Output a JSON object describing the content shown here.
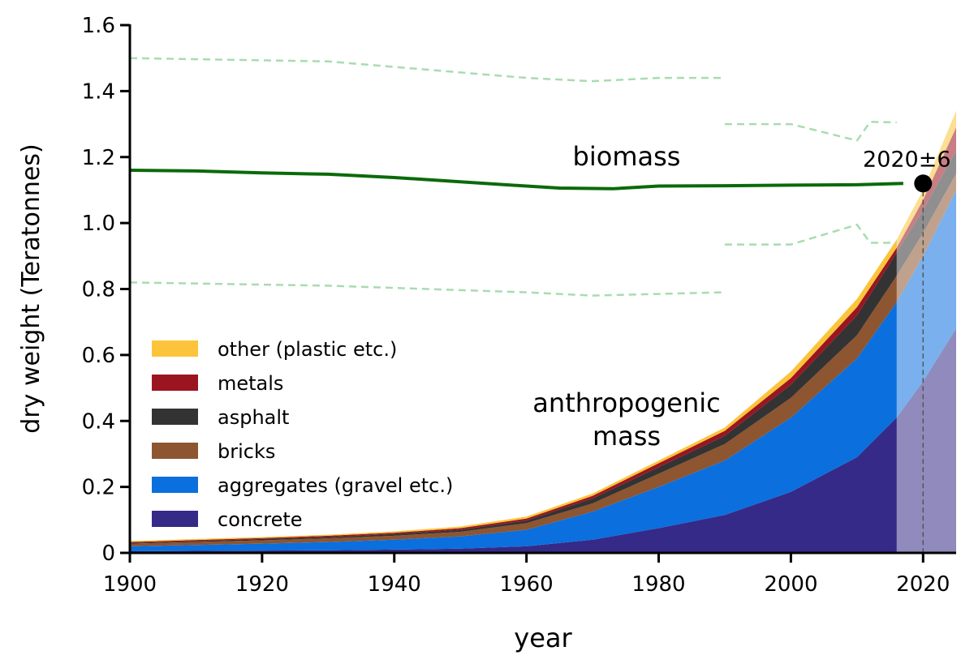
{
  "chart_data": {
    "type": "area",
    "xlabel": "year",
    "ylabel": "dry weight (Teratonnes)",
    "xlim": [
      1900,
      2025
    ],
    "ylim": [
      0,
      1.6
    ],
    "xticks": [
      1900,
      1920,
      1940,
      1960,
      1980,
      2000,
      2020
    ],
    "yticks": [
      0,
      0.2,
      0.4,
      0.6,
      0.8,
      1.0,
      1.2,
      1.4,
      1.6
    ],
    "ytick_labels": [
      "0",
      "0.2",
      "0.4",
      "0.6",
      "0.8",
      "1.0",
      "1.2",
      "1.4",
      "1.6"
    ],
    "grid": false,
    "legend_placement": "lower-left",
    "stacked": true,
    "projection_start": 2016,
    "x": [
      1900,
      1910,
      1920,
      1930,
      1940,
      1950,
      1960,
      1970,
      1980,
      1990,
      2000,
      2010,
      2016,
      2020,
      2025
    ],
    "series": [
      {
        "name": "concrete",
        "color": "#352a87",
        "values": [
          0.005,
          0.006,
          0.007,
          0.008,
          0.01,
          0.013,
          0.02,
          0.04,
          0.075,
          0.115,
          0.185,
          0.29,
          0.41,
          0.52,
          0.68
        ]
      },
      {
        "name": "aggregates (gravel etc.)",
        "color": "#0b6fde",
        "values": [
          0.015,
          0.018,
          0.021,
          0.025,
          0.03,
          0.037,
          0.05,
          0.085,
          0.125,
          0.165,
          0.225,
          0.3,
          0.35,
          0.38,
          0.42
        ]
      },
      {
        "name": "bricks",
        "color": "#8d5530",
        "values": [
          0.008,
          0.009,
          0.01,
          0.011,
          0.012,
          0.014,
          0.02,
          0.025,
          0.04,
          0.05,
          0.06,
          0.07,
          0.08,
          0.07,
          0.05
        ]
      },
      {
        "name": "asphalt",
        "color": "#333333",
        "values": [
          0.002,
          0.003,
          0.004,
          0.004,
          0.005,
          0.006,
          0.008,
          0.015,
          0.02,
          0.025,
          0.04,
          0.06,
          0.07,
          0.07,
          0.07
        ]
      },
      {
        "name": "metals",
        "color": "#9b1520",
        "values": [
          0.003,
          0.003,
          0.003,
          0.004,
          0.004,
          0.005,
          0.006,
          0.008,
          0.012,
          0.015,
          0.02,
          0.025,
          0.015,
          0.03,
          0.07
        ]
      },
      {
        "name": "other (plastic etc.)",
        "color": "#fcc43a",
        "values": [
          0.003,
          0.003,
          0.003,
          0.003,
          0.004,
          0.005,
          0.006,
          0.007,
          0.008,
          0.01,
          0.02,
          0.025,
          0.025,
          0.03,
          0.05
        ]
      }
    ],
    "biomass": {
      "label": "biomass",
      "color": "#0a6a0a",
      "x": [
        1900,
        1910,
        1920,
        1930,
        1940,
        1950,
        1960,
        1965,
        1973,
        1980,
        1990,
        2000,
        2010,
        2017
      ],
      "values": [
        1.16,
        1.158,
        1.152,
        1.148,
        1.138,
        1.125,
        1.112,
        1.106,
        1.104,
        1.112,
        1.113,
        1.115,
        1.116,
        1.12
      ],
      "uncertainty_color": "#a8dcb0",
      "upper_bands": [
        {
          "x": [
            1900,
            1930,
            1960,
            1970,
            1980,
            1990
          ],
          "values": [
            1.5,
            1.49,
            1.44,
            1.43,
            1.44,
            1.44
          ]
        },
        {
          "x": [
            1990,
            2000,
            2010,
            2012,
            2016
          ],
          "values": [
            1.3,
            1.3,
            1.25,
            1.307,
            1.305
          ]
        }
      ],
      "lower_bands": [
        {
          "x": [
            1900,
            1930,
            1960,
            1970,
            1980,
            1990
          ],
          "values": [
            0.82,
            0.81,
            0.79,
            0.78,
            0.785,
            0.79
          ]
        },
        {
          "x": [
            1990,
            2000,
            2010,
            2012,
            2016
          ],
          "values": [
            0.935,
            0.935,
            0.995,
            0.94,
            0.94
          ]
        }
      ]
    },
    "crossover": {
      "x": 2020,
      "y": 1.12,
      "label": "2020±6"
    },
    "annotations": {
      "biomass": "biomass",
      "anthropogenic_line1": "anthropogenic",
      "anthropogenic_line2": "mass"
    }
  }
}
